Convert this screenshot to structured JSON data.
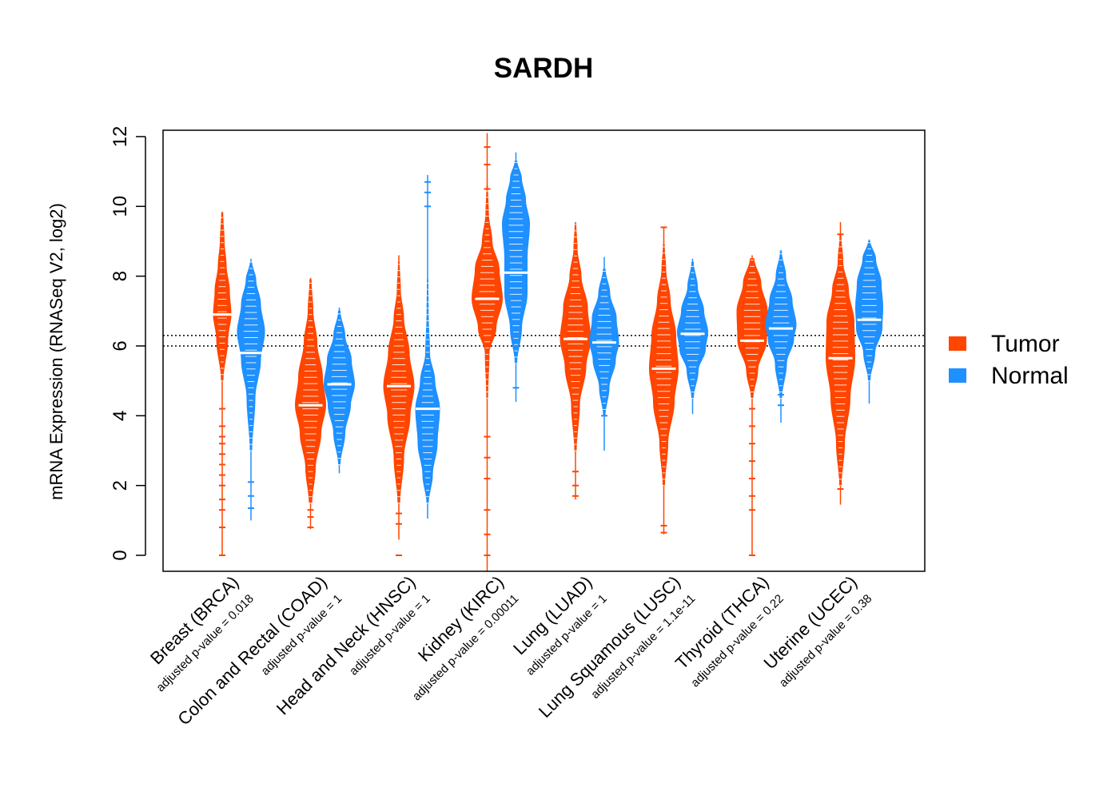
{
  "chart_data": {
    "type": "violin",
    "title": "SARDH",
    "ylabel": "mRNA Expression (RNASeq V2, log2)",
    "xlabel": "",
    "ylim": [
      -0.45,
      12.2
    ],
    "yticks": [
      0,
      2,
      4,
      6,
      8,
      10,
      12
    ],
    "reference_lines": [
      6.0,
      6.3
    ],
    "colors": {
      "Tumor": "#FF4500",
      "Normal": "#1E90FF"
    },
    "legend": {
      "placement": "right",
      "entries": [
        "Tumor",
        "Normal"
      ]
    },
    "categories": [
      {
        "name": "Breast (BRCA)",
        "pvalue_label": "adjusted p-value = 0.018",
        "tumor": {
          "median": 6.9,
          "whisker": [
            0,
            9.85
          ],
          "body": [
            [
              5.0,
              0.05
            ],
            [
              6.2,
              0.35
            ],
            [
              6.9,
              0.55
            ],
            [
              7.6,
              0.45
            ],
            [
              8.3,
              0.25
            ],
            [
              9.0,
              0.12
            ],
            [
              9.8,
              0.04
            ]
          ],
          "outliers": [
            0,
            0.8,
            1.3,
            1.6,
            2.0,
            2.3,
            2.6,
            2.9,
            3.2,
            3.4,
            3.7,
            4.2
          ]
        },
        "normal": {
          "median": 5.8,
          "whisker": [
            1.0,
            8.5
          ],
          "body": [
            [
              3.0,
              0.05
            ],
            [
              4.5,
              0.25
            ],
            [
              5.6,
              0.6
            ],
            [
              6.4,
              0.85
            ],
            [
              7.2,
              0.6
            ],
            [
              7.9,
              0.3
            ],
            [
              8.4,
              0.05
            ]
          ],
          "outliers": [
            1.35,
            1.7,
            2.1
          ]
        }
      },
      {
        "name": "Colon and Rectal (COAD)",
        "pvalue_label": "adjusted p-value = 1",
        "tumor": {
          "median": 4.3,
          "whisker": [
            0.75,
            7.95
          ],
          "body": [
            [
              1.5,
              0.08
            ],
            [
              2.5,
              0.3
            ],
            [
              3.5,
              0.65
            ],
            [
              4.3,
              0.95
            ],
            [
              5.1,
              0.75
            ],
            [
              6.1,
              0.4
            ],
            [
              7.0,
              0.15
            ],
            [
              7.9,
              0.04
            ]
          ],
          "outliers": [
            0.8,
            1.1,
            1.3
          ]
        },
        "normal": {
          "median": 4.9,
          "whisker": [
            2.35,
            7.1
          ],
          "body": [
            [
              2.6,
              0.05
            ],
            [
              3.5,
              0.35
            ],
            [
              4.3,
              0.7
            ],
            [
              4.9,
              0.95
            ],
            [
              5.6,
              0.75
            ],
            [
              6.3,
              0.35
            ],
            [
              7.0,
              0.05
            ]
          ],
          "outliers": []
        }
      },
      {
        "name": "Head and Neck (HNSC)",
        "pvalue_label": "adjusted p-value = 1",
        "tumor": {
          "median": 4.85,
          "whisker": [
            0.45,
            8.6
          ],
          "body": [
            [
              1.5,
              0.06
            ],
            [
              2.8,
              0.3
            ],
            [
              4.0,
              0.7
            ],
            [
              4.85,
              0.95
            ],
            [
              5.8,
              0.65
            ],
            [
              6.8,
              0.3
            ],
            [
              7.6,
              0.1
            ],
            [
              8.4,
              0.03
            ]
          ],
          "outliers": [
            0,
            0.9,
            1.2
          ]
        },
        "normal": {
          "median": 4.2,
          "whisker": [
            1.05,
            10.9
          ],
          "body": [
            [
              1.5,
              0.05
            ],
            [
              2.3,
              0.3
            ],
            [
              3.2,
              0.6
            ],
            [
              4.2,
              0.75
            ],
            [
              5.0,
              0.45
            ],
            [
              5.8,
              0.12
            ],
            [
              7.0,
              0.04
            ],
            [
              7.9,
              0.02
            ]
          ],
          "outliers": [
            10.0,
            10.4,
            10.7
          ]
        }
      },
      {
        "name": "Kidney (KIRC)",
        "pvalue_label": "adjusted p-value = 0.00011",
        "tumor": {
          "median": 7.35,
          "whisker": [
            -0.45,
            12.1
          ],
          "body": [
            [
              4.5,
              0.03
            ],
            [
              5.8,
              0.12
            ],
            [
              6.5,
              0.55
            ],
            [
              7.35,
              0.95
            ],
            [
              8.2,
              0.75
            ],
            [
              9.0,
              0.3
            ],
            [
              9.8,
              0.08
            ],
            [
              10.6,
              0.02
            ]
          ],
          "outliers": [
            0,
            0.6,
            1.3,
            2.2,
            2.8,
            3.4,
            10.5,
            11.2,
            11.7
          ]
        },
        "normal": {
          "median": 8.1,
          "whisker": [
            4.4,
            11.55
          ],
          "body": [
            [
              5.5,
              0.05
            ],
            [
              6.5,
              0.35
            ],
            [
              7.5,
              0.7
            ],
            [
              8.5,
              0.7
            ],
            [
              9.5,
              0.85
            ],
            [
              10.2,
              0.6
            ],
            [
              10.8,
              0.35
            ],
            [
              11.3,
              0.06
            ]
          ],
          "outliers": [
            4.8
          ]
        }
      },
      {
        "name": "Lung (LUAD)",
        "pvalue_label": "adjusted p-value = 1",
        "tumor": {
          "median": 6.2,
          "whisker": [
            1.6,
            9.55
          ],
          "body": [
            [
              3.0,
              0.05
            ],
            [
              4.3,
              0.25
            ],
            [
              5.4,
              0.65
            ],
            [
              6.2,
              0.95
            ],
            [
              7.1,
              0.75
            ],
            [
              8.0,
              0.35
            ],
            [
              8.8,
              0.1
            ],
            [
              9.5,
              0.03
            ]
          ],
          "outliers": [
            1.7,
            2.0,
            2.4
          ]
        },
        "normal": {
          "median": 6.1,
          "whisker": [
            3.0,
            8.55
          ],
          "body": [
            [
              4.0,
              0.05
            ],
            [
              4.8,
              0.3
            ],
            [
              5.6,
              0.7
            ],
            [
              6.1,
              0.9
            ],
            [
              6.8,
              0.75
            ],
            [
              7.5,
              0.35
            ],
            [
              8.2,
              0.06
            ]
          ],
          "outliers": [
            4.0
          ]
        }
      },
      {
        "name": "Lung Squamous (LUSC)",
        "pvalue_label": "adjusted p-value = 1.1e-11",
        "tumor": {
          "median": 5.35,
          "whisker": [
            0.6,
            9.4
          ],
          "body": [
            [
              2.0,
              0.05
            ],
            [
              3.2,
              0.25
            ],
            [
              4.4,
              0.65
            ],
            [
              5.35,
              0.9
            ],
            [
              6.3,
              0.75
            ],
            [
              7.3,
              0.4
            ],
            [
              8.2,
              0.12
            ],
            [
              8.9,
              0.03
            ]
          ],
          "outliers": [
            0.65,
            0.85,
            9.4
          ]
        },
        "normal": {
          "median": 6.35,
          "whisker": [
            4.05,
            8.5
          ],
          "body": [
            [
              4.5,
              0.05
            ],
            [
              5.3,
              0.35
            ],
            [
              5.9,
              0.8
            ],
            [
              6.4,
              0.95
            ],
            [
              7.0,
              0.7
            ],
            [
              7.7,
              0.3
            ],
            [
              8.4,
              0.05
            ]
          ],
          "outliers": []
        }
      },
      {
        "name": "Thyroid (THCA)",
        "pvalue_label": "adjusted p-value = 0.22",
        "tumor": {
          "median": 6.15,
          "whisker": [
            0,
            8.6
          ],
          "body": [
            [
              4.5,
              0.05
            ],
            [
              5.3,
              0.35
            ],
            [
              6.15,
              0.9
            ],
            [
              7.0,
              0.95
            ],
            [
              7.8,
              0.55
            ],
            [
              8.5,
              0.12
            ]
          ],
          "outliers": [
            0,
            1.3,
            1.7,
            2.2,
            2.7,
            3.2,
            3.7,
            4.2
          ]
        },
        "normal": {
          "median": 6.5,
          "whisker": [
            3.8,
            8.75
          ],
          "body": [
            [
              4.5,
              0.05
            ],
            [
              5.5,
              0.35
            ],
            [
              6.2,
              0.8
            ],
            [
              6.6,
              0.95
            ],
            [
              7.3,
              0.7
            ],
            [
              8.0,
              0.3
            ],
            [
              8.7,
              0.04
            ]
          ],
          "outliers": [
            4.3,
            4.6,
            8.3
          ]
        }
      },
      {
        "name": "Uterine (UCEC)",
        "pvalue_label": "adjusted p-value = 0.38",
        "tumor": {
          "median": 5.65,
          "whisker": [
            1.45,
            9.55
          ],
          "body": [
            [
              2.0,
              0.05
            ],
            [
              3.2,
              0.25
            ],
            [
              4.5,
              0.6
            ],
            [
              5.65,
              0.9
            ],
            [
              6.7,
              0.85
            ],
            [
              7.6,
              0.5
            ],
            [
              8.4,
              0.15
            ],
            [
              9.2,
              0.03
            ]
          ],
          "outliers": [
            1.9,
            9.2
          ]
        },
        "normal": {
          "median": 6.75,
          "whisker": [
            4.35,
            9.05
          ],
          "body": [
            [
              5.0,
              0.05
            ],
            [
              5.8,
              0.35
            ],
            [
              6.5,
              0.8
            ],
            [
              7.1,
              0.85
            ],
            [
              7.8,
              0.75
            ],
            [
              8.5,
              0.4
            ],
            [
              9.0,
              0.05
            ]
          ],
          "outliers": []
        }
      }
    ]
  }
}
